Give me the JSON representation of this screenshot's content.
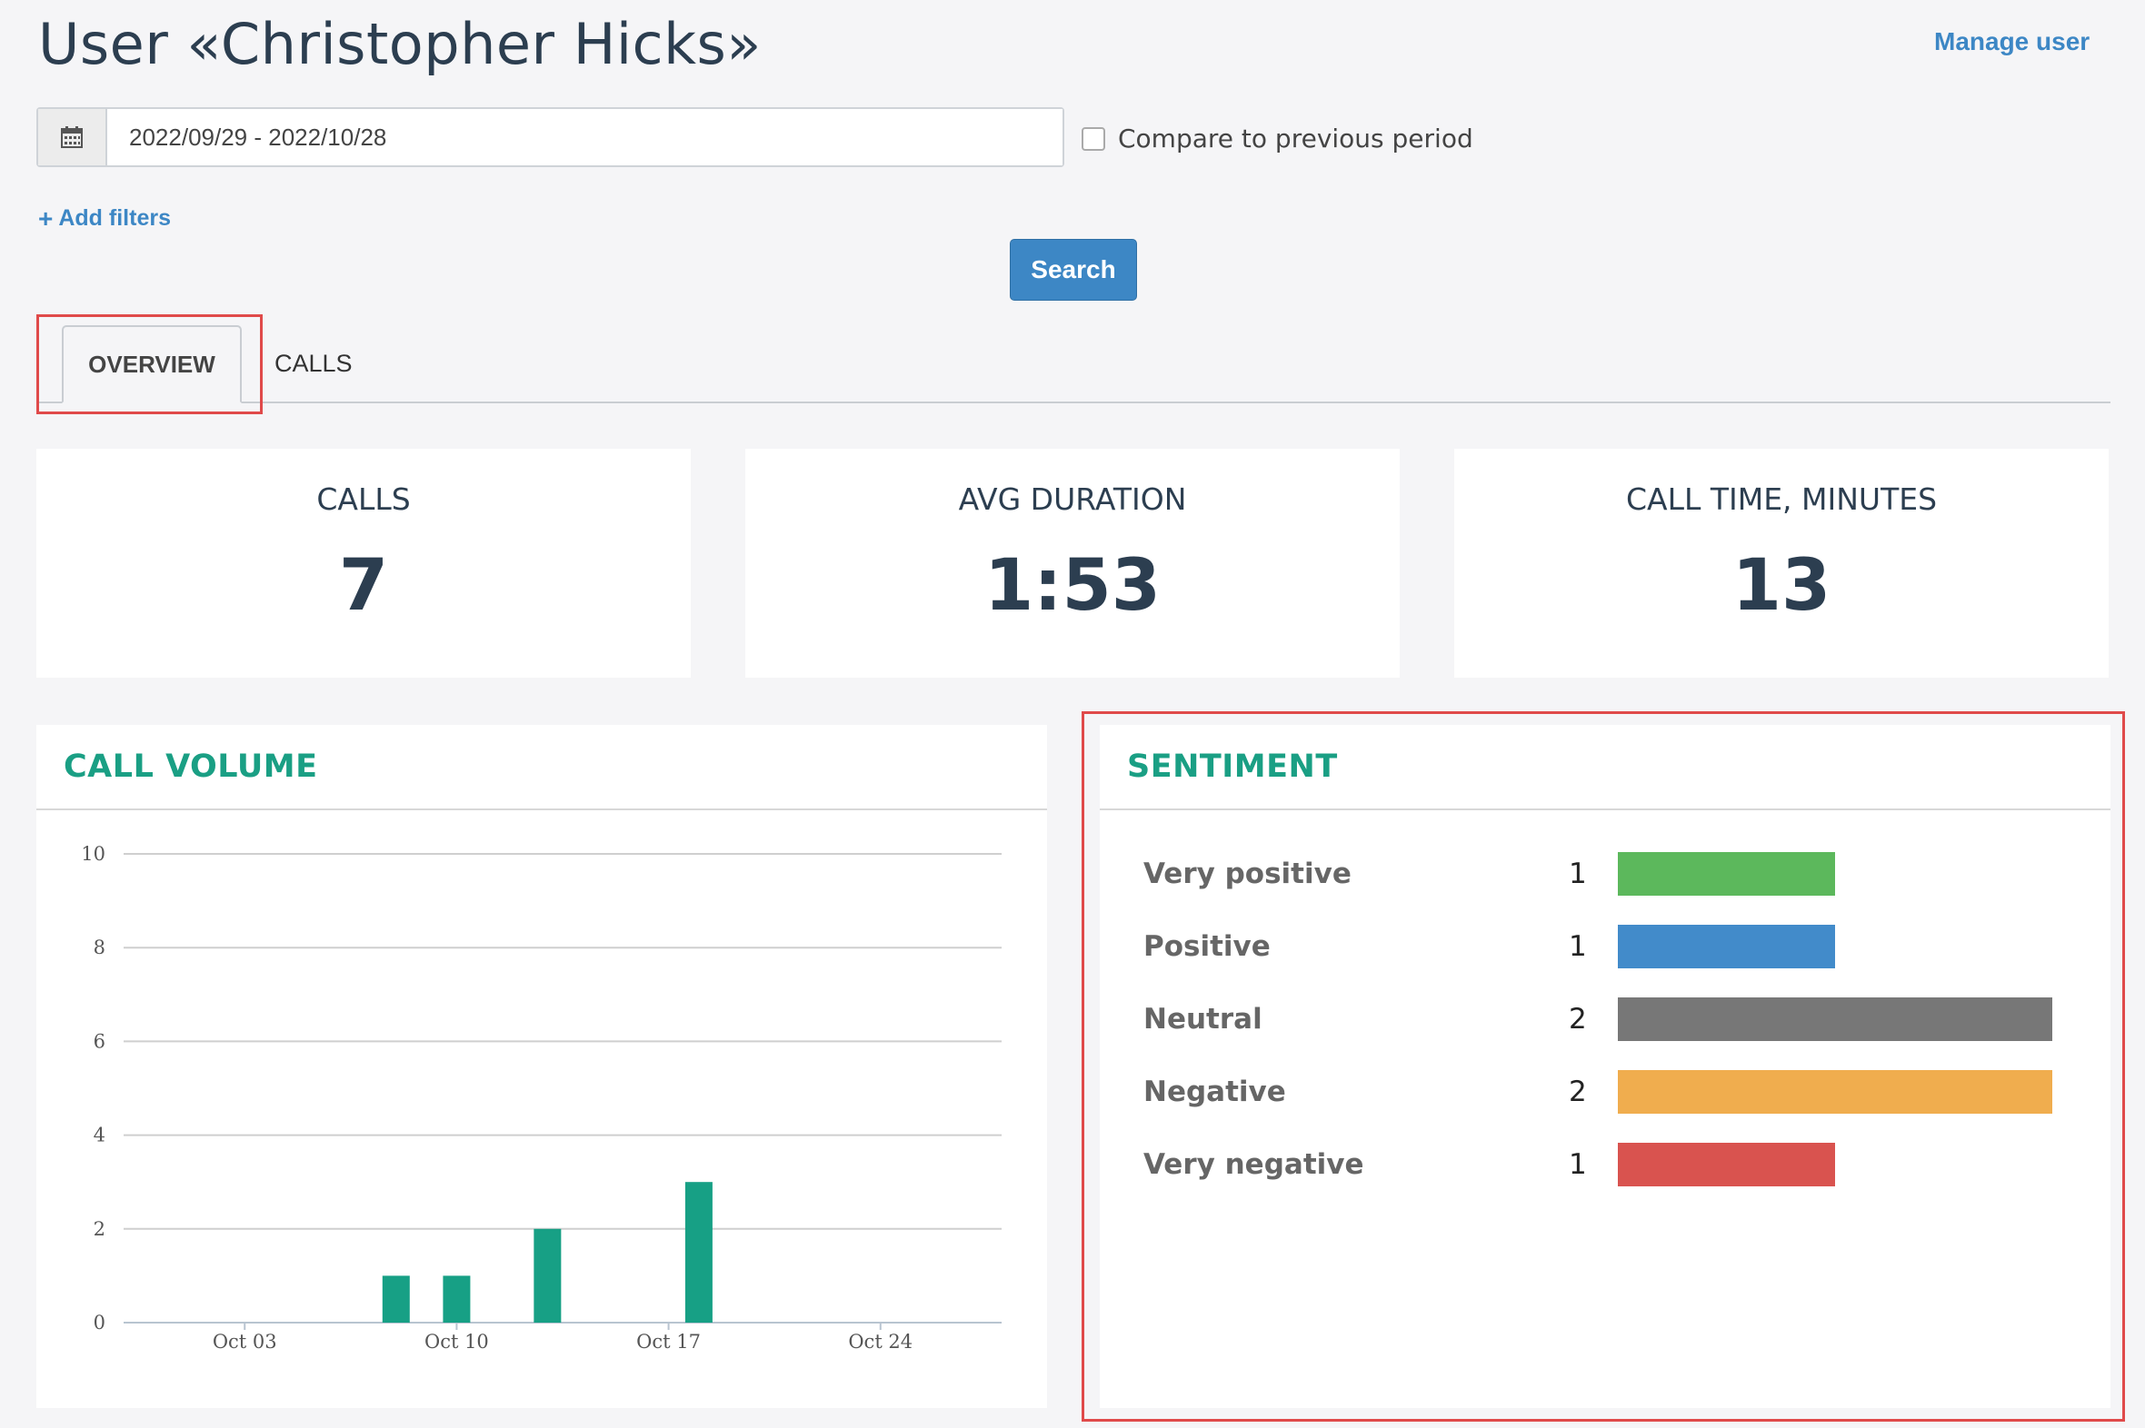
{
  "header": {
    "title": "User «Christopher Hicks»",
    "manage_link": "Manage user"
  },
  "filters": {
    "date_range": "2022/09/29 - 2022/10/28",
    "compare_label": "Compare to previous period",
    "compare_checked": false,
    "add_filters_label": "Add filters",
    "search_label": "Search"
  },
  "tabs": [
    {
      "label": "OVERVIEW",
      "active": true
    },
    {
      "label": "CALLS",
      "active": false
    }
  ],
  "stats": [
    {
      "label": "CALLS",
      "value": "7"
    },
    {
      "label": "AVG DURATION",
      "value": "1:53"
    },
    {
      "label": "CALL TIME, MINUTES",
      "value": "13"
    }
  ],
  "call_volume": {
    "title": "CALL  VOLUME"
  },
  "sentiment": {
    "title": "SENTIMENT",
    "rows": [
      {
        "label": "Very positive",
        "count": "1",
        "value": 1,
        "color": "#5cb85c"
      },
      {
        "label": "Positive",
        "count": "1",
        "value": 1,
        "color": "#428bca"
      },
      {
        "label": "Neutral",
        "count": "2",
        "value": 2,
        "color": "#777777"
      },
      {
        "label": "Negative",
        "count": "2",
        "value": 2,
        "color": "#f0ad4e"
      },
      {
        "label": "Very negative",
        "count": "1",
        "value": 1,
        "color": "#d9534f"
      }
    ]
  },
  "chart_data": {
    "type": "bar",
    "title": "CALL  VOLUME",
    "x_start": "2022-09-29",
    "x_end": "2022-10-28",
    "x_ticks": [
      {
        "date": "2022-10-03",
        "label": "Oct 03"
      },
      {
        "date": "2022-10-10",
        "label": "Oct 10"
      },
      {
        "date": "2022-10-17",
        "label": "Oct 17"
      },
      {
        "date": "2022-10-24",
        "label": "Oct 24"
      }
    ],
    "points": [
      {
        "date": "2022-10-08",
        "value": 1
      },
      {
        "date": "2022-10-10",
        "value": 1
      },
      {
        "date": "2022-10-13",
        "value": 2
      },
      {
        "date": "2022-10-18",
        "value": 3
      }
    ],
    "ylim": [
      0,
      10
    ],
    "y_ticks": [
      0,
      2,
      4,
      6,
      8,
      10
    ],
    "grid": true,
    "bar_color": "#17a085"
  }
}
